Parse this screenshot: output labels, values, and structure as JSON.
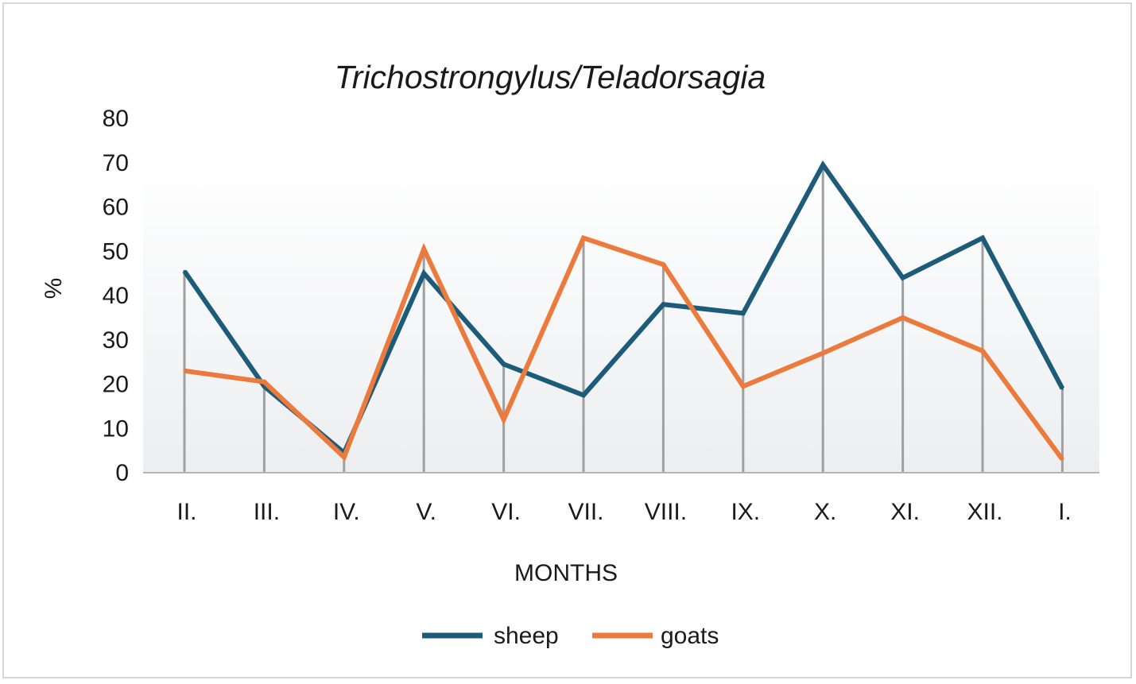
{
  "chart_data": {
    "type": "line",
    "title": "Trichostrongylus/Teladorsagia",
    "xlabel": "MONTHS",
    "ylabel": "%",
    "categories": [
      "II.",
      "III.",
      "IV.",
      "V.",
      "VI.",
      "VII.",
      "VIII.",
      "IX.",
      "X.",
      "XI.",
      "XII.",
      "I."
    ],
    "ylim": [
      0,
      80
    ],
    "yticks": [
      "0",
      "10",
      "20",
      "30",
      "40",
      "50",
      "60",
      "70",
      "80"
    ],
    "series": [
      {
        "name": "sheep",
        "color": "#1d5b7a",
        "values": [
          45.5,
          19.5,
          4.5,
          45,
          24.5,
          17.5,
          38,
          36,
          69.5,
          44,
          53,
          19
        ]
      },
      {
        "name": "goats",
        "color": "#ec7a3c",
        "values": [
          23,
          20.5,
          3.5,
          50.5,
          12,
          53,
          47,
          19.5,
          27,
          35,
          27.5,
          3
        ]
      }
    ],
    "drop_lines": true,
    "grid": false,
    "legend_position": "bottom"
  }
}
